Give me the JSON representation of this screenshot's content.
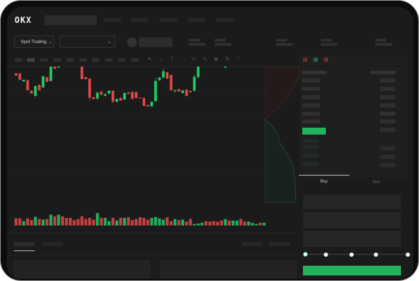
{
  "header": {
    "logo": "OKX",
    "nav_items": 5
  },
  "toolbar": {
    "market_selector": "Spot Trading",
    "pair_selector": ""
  },
  "orderbook": {
    "view_icons": [
      "orderbook-both-icon",
      "orderbook-bids-icon",
      "orderbook-asks-icon"
    ]
  },
  "trade": {
    "tabs": [
      "Buy",
      "Sell"
    ],
    "active_tab": "Buy",
    "slider_percent": 0,
    "slider_steps": [
      0,
      25,
      50,
      75,
      100
    ]
  },
  "colors": {
    "up": "#22c768",
    "down": "#e04848",
    "background": "#1b1b1b"
  },
  "chart_data": {
    "type": "candlestick",
    "columns": [
      "open",
      "close",
      "high",
      "low"
    ],
    "candles": [
      [
        185,
        175,
        186,
        174
      ],
      [
        185,
        157,
        186,
        156
      ],
      [
        150,
        157,
        158,
        148
      ],
      [
        155,
        112,
        160,
        110
      ],
      [
        110,
        98,
        112,
        96
      ],
      [
        88,
        130,
        130,
        78
      ],
      [
        135,
        112,
        137,
        110
      ],
      [
        124,
        172,
        174,
        122
      ],
      [
        168,
        148,
        170,
        146
      ],
      [
        152,
        235,
        258,
        150
      ],
      [
        232,
        205,
        234,
        203
      ],
      [
        210,
        295,
        332,
        208
      ],
      [
        300,
        288,
        302,
        286
      ],
      [
        292,
        282,
        294,
        280
      ],
      [
        292,
        260,
        306,
        258
      ],
      [
        282,
        275,
        284,
        273
      ],
      [
        285,
        222,
        292,
        220
      ],
      [
        222,
        160,
        224,
        158
      ],
      [
        169,
        160,
        170,
        158
      ],
      [
        162,
        80,
        164,
        66
      ],
      [
        82,
        74,
        84,
        72
      ],
      [
        76,
        102,
        104,
        70
      ],
      [
        105,
        92,
        112,
        90
      ],
      [
        88,
        95,
        98,
        84
      ],
      [
        97,
        110,
        112,
        95
      ],
      [
        110,
        62,
        112,
        54
      ],
      [
        62,
        74,
        76,
        60
      ],
      [
        78,
        67,
        82,
        65
      ],
      [
        72,
        100,
        102,
        70
      ],
      [
        102,
        96,
        104,
        94
      ],
      [
        104,
        74,
        106,
        72
      ],
      [
        104,
        78,
        106,
        76
      ],
      [
        80,
        78,
        82,
        76
      ],
      [
        78,
        44,
        82,
        42
      ],
      [
        48,
        42,
        50,
        40
      ],
      [
        42,
        62,
        64,
        38
      ],
      [
        65,
        152,
        166,
        60
      ],
      [
        155,
        167,
        168,
        154
      ],
      [
        167,
        194,
        208,
        165
      ],
      [
        190,
        162,
        192,
        160
      ],
      [
        178,
        112,
        180,
        110
      ],
      [
        108,
        112,
        116,
        100
      ],
      [
        117,
        107,
        118,
        105
      ],
      [
        100,
        111,
        112,
        98
      ],
      [
        115,
        87,
        117,
        86
      ],
      [
        108,
        103,
        110,
        101
      ],
      [
        110,
        170,
        180,
        106
      ],
      [
        168,
        215,
        222,
        165
      ],
      [
        215,
        340,
        385,
        212
      ],
      [
        345,
        308,
        352,
        306
      ],
      [
        307,
        235,
        310,
        225
      ],
      [
        242,
        235,
        244,
        232
      ],
      [
        233,
        217,
        235,
        215
      ],
      [
        220,
        217,
        225,
        215
      ],
      [
        210,
        248,
        250,
        208
      ],
      [
        252,
        248,
        262,
        246
      ],
      [
        242,
        254,
        256,
        240
      ],
      [
        254,
        334,
        336,
        252
      ],
      [
        340,
        302,
        342,
        300
      ],
      [
        302,
        290,
        304,
        288
      ],
      [
        282,
        308,
        312,
        280
      ],
      [
        308,
        336,
        355,
        306
      ],
      [
        338,
        363,
        376,
        336
      ],
      [
        338,
        318,
        340,
        308
      ],
      [
        314,
        330,
        350,
        312
      ]
    ],
    "volume": [
      33,
      33,
      20,
      33,
      25,
      40,
      30,
      27,
      30,
      50,
      42,
      50,
      42,
      35,
      35,
      25,
      30,
      42,
      30,
      35,
      27,
      57,
      35,
      35,
      20,
      35,
      23,
      35,
      35,
      38,
      25,
      30,
      38,
      35,
      27,
      35,
      39,
      33,
      27,
      38,
      20,
      30,
      25,
      27,
      18,
      30,
      7,
      9,
      13,
      20,
      18,
      20,
      18,
      23,
      30,
      23,
      23,
      23,
      30,
      18,
      18,
      12,
      7,
      13,
      13
    ]
  }
}
